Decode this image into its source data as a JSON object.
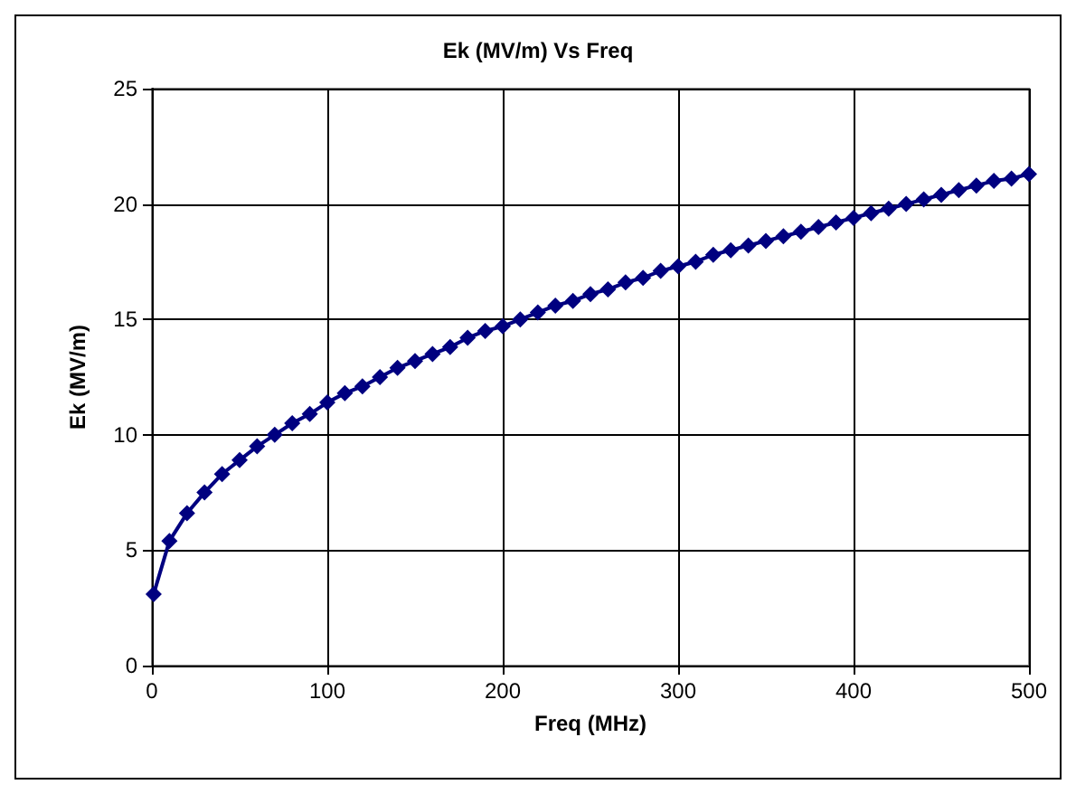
{
  "chart_data": {
    "type": "line",
    "title": "Ek (MV/m) Vs Freq",
    "xlabel": "Freq (MHz)",
    "ylabel": "Ek (MV/m)",
    "x": [
      1,
      10,
      20,
      30,
      40,
      50,
      60,
      70,
      80,
      90,
      100,
      110,
      120,
      130,
      140,
      150,
      160,
      170,
      180,
      190,
      200,
      210,
      220,
      230,
      240,
      250,
      260,
      270,
      280,
      290,
      300,
      310,
      320,
      330,
      340,
      350,
      360,
      370,
      380,
      390,
      400,
      410,
      420,
      430,
      440,
      450,
      460,
      470,
      480,
      490,
      500
    ],
    "series": [
      {
        "color": "#000080",
        "values": [
          3.1,
          5.4,
          6.6,
          7.5,
          8.3,
          8.9,
          9.5,
          10.0,
          10.5,
          10.9,
          11.4,
          11.8,
          12.1,
          12.5,
          12.9,
          13.2,
          13.5,
          13.8,
          14.2,
          14.5,
          14.7,
          15.0,
          15.3,
          15.6,
          15.8,
          16.1,
          16.3,
          16.6,
          16.8,
          17.1,
          17.3,
          17.5,
          17.8,
          18.0,
          18.2,
          18.4,
          18.6,
          18.8,
          19.0,
          19.2,
          19.4,
          19.6,
          19.8,
          20.0,
          20.2,
          20.4,
          20.6,
          20.8,
          21.0,
          21.1,
          21.3
        ]
      }
    ],
    "xlim": [
      0,
      500
    ],
    "xticks": [
      0,
      100,
      200,
      300,
      400,
      500
    ],
    "ylim": [
      0,
      25
    ],
    "yticks": [
      0,
      5,
      10,
      15,
      20,
      25
    ],
    "grid": true,
    "marker": "diamond",
    "line_style": "solid"
  }
}
